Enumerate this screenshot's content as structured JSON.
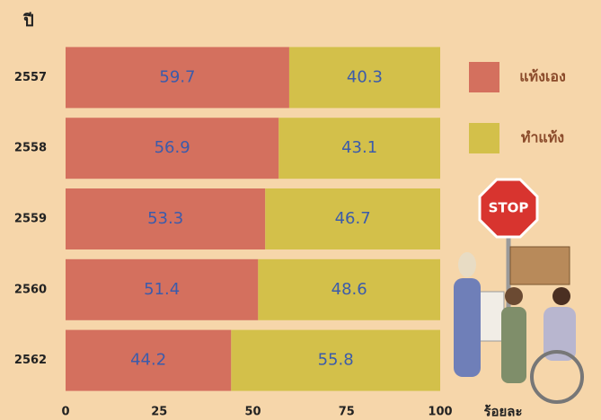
{
  "chart_data": {
    "type": "stacked-bar-horizontal",
    "y_axis_title": "ปี",
    "x_axis_title": "ร้อยละ",
    "categories": [
      "2557",
      "2558",
      "2559",
      "2560",
      "2562"
    ],
    "series": [
      {
        "name": "แท้งเอง",
        "color": "#d4705e",
        "values": [
          59.7,
          56.9,
          53.3,
          51.4,
          44.2
        ]
      },
      {
        "name": "ทำแท้ง",
        "color": "#d3c04a",
        "values": [
          40.3,
          43.1,
          46.7,
          48.6,
          55.8
        ]
      }
    ],
    "xlim": [
      0,
      100
    ],
    "xticks": [
      0,
      25,
      50,
      75,
      100
    ],
    "grid": false,
    "legend": "right",
    "label_color": "#3b5bab"
  },
  "illustration": {
    "sign": "STOP"
  }
}
